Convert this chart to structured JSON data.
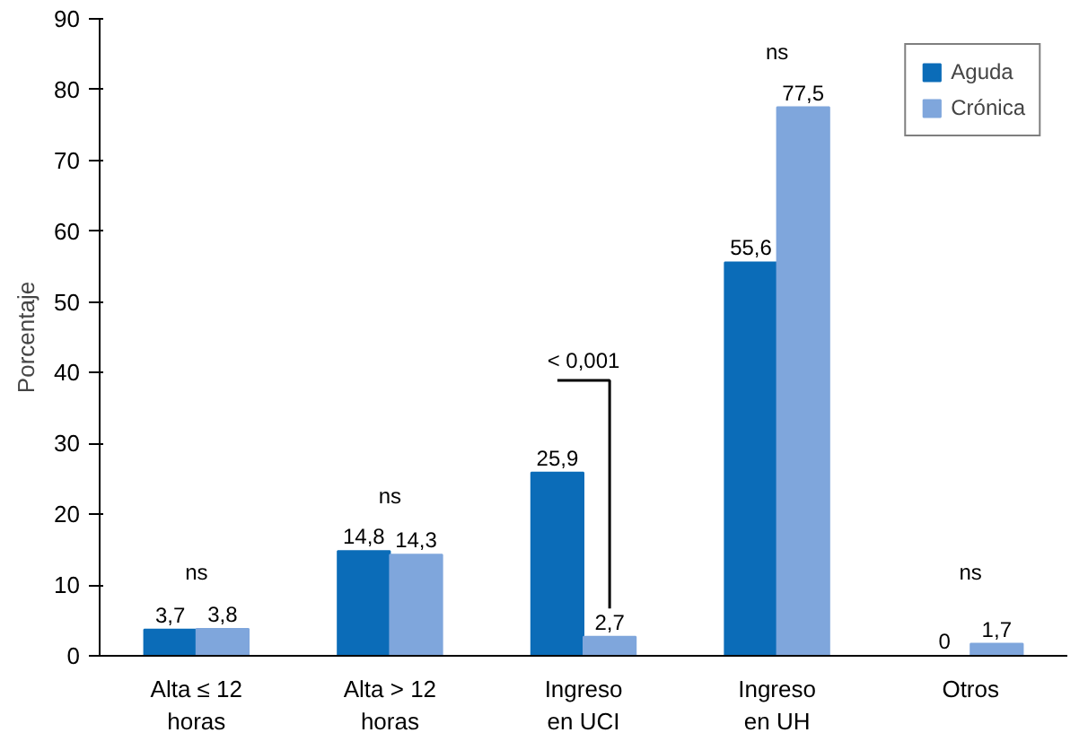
{
  "chart_data": {
    "type": "bar",
    "ylabel": "Porcentaje",
    "categories": [
      "Alta ≤ 12 horas",
      "Alta > 12 horas",
      "Ingreso en UCI",
      "Ingreso en UH",
      "Otros"
    ],
    "series": [
      {
        "name": "Aguda",
        "color": "#0b6cb8",
        "values": [
          3.7,
          14.8,
          25.9,
          55.6,
          0
        ],
        "value_labels": [
          "3,7",
          "14,8",
          "25,9",
          "55,6",
          "0"
        ]
      },
      {
        "name": "Crónica",
        "color": "#7fa6dc",
        "values": [
          3.8,
          14.3,
          2.7,
          77.5,
          1.7
        ],
        "value_labels": [
          "3,8",
          "14,3",
          "2,7",
          "77,5",
          "1,7"
        ]
      }
    ],
    "ylim": [
      0,
      90
    ],
    "yticks": [
      0,
      10,
      20,
      30,
      40,
      50,
      60,
      70,
      80,
      90
    ],
    "annotations": [
      "ns",
      "ns",
      "< 0,001",
      "ns",
      "ns"
    ],
    "grid": false,
    "legend": "top right"
  }
}
